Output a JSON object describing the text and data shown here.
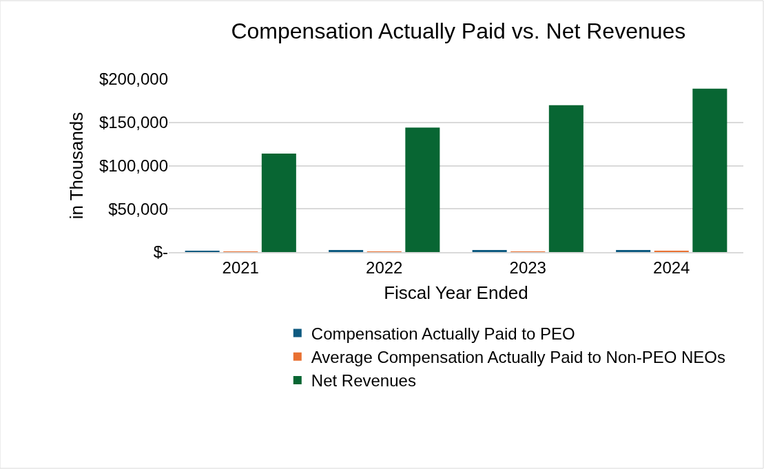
{
  "chart_data": {
    "type": "bar",
    "title": "Compensation Actually Paid vs. Net Revenues",
    "xlabel": "Fiscal Year Ended",
    "ylabel": "in Thousands",
    "categories": [
      "2021",
      "2022",
      "2023",
      "2024"
    ],
    "series": [
      {
        "name": "Compensation Actually Paid to PEO",
        "color": "#0e5a80",
        "values": [
          1000,
          2400,
          2400,
          2400
        ]
      },
      {
        "name": "Average Compensation Actually Paid to Non-PEO NEOs",
        "color": "#e97132",
        "values": [
          500,
          700,
          700,
          1200
        ]
      },
      {
        "name": "Net Revenues",
        "color": "#086633",
        "values": [
          114000,
          144000,
          170000,
          189000
        ]
      }
    ],
    "ylim": [
      0,
      200000
    ],
    "yticks": [
      {
        "value": 0,
        "label": "$-"
      },
      {
        "value": 50000,
        "label": "$50,000"
      },
      {
        "value": 100000,
        "label": "$100,000"
      },
      {
        "value": 150000,
        "label": "$150,000"
      },
      {
        "value": 200000,
        "label": "$200,000"
      }
    ],
    "grid": "y",
    "legend": "bottom"
  }
}
